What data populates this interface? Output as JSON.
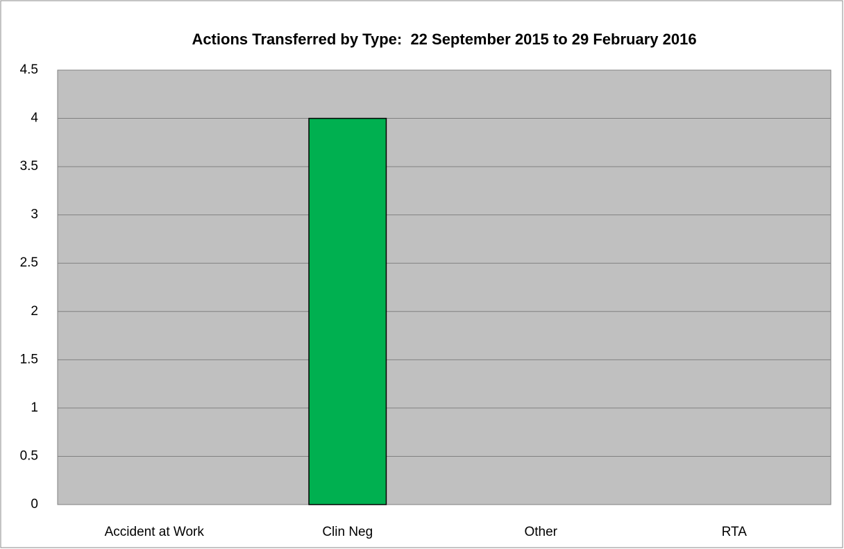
{
  "chart_data": {
    "type": "bar",
    "title": "Actions Transferred by Type:  22 September 2015 to 29 February 2016",
    "categories": [
      "Accident at Work",
      "Clin Neg",
      "Other",
      "RTA"
    ],
    "values": [
      0,
      4,
      0,
      0
    ],
    "color": "#00b050",
    "ylim": [
      0,
      4.5
    ],
    "yticks": [
      0,
      0.5,
      1,
      1.5,
      2,
      2.5,
      3,
      3.5,
      4,
      4.5
    ],
    "grid": true
  }
}
